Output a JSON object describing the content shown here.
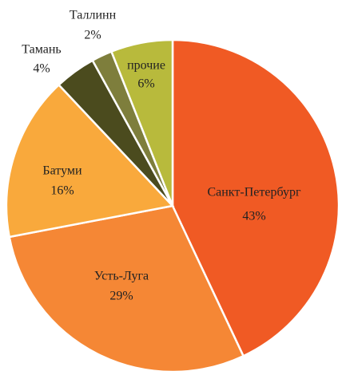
{
  "chart_data": {
    "type": "pie",
    "categories": [
      "Санкт-Петербург",
      "Усть-Луга",
      "Батуми",
      "Тамань",
      "Таллинн",
      "прочие"
    ],
    "values": [
      43,
      29,
      16,
      4,
      2,
      6
    ],
    "value_labels": [
      "43%",
      "29%",
      "16%",
      "4%",
      "2%",
      "6%"
    ],
    "colors": [
      "#f05a24",
      "#f58735",
      "#f9a93c",
      "#4b4b1e",
      "#7e7e3c",
      "#b8ba3c"
    ]
  }
}
